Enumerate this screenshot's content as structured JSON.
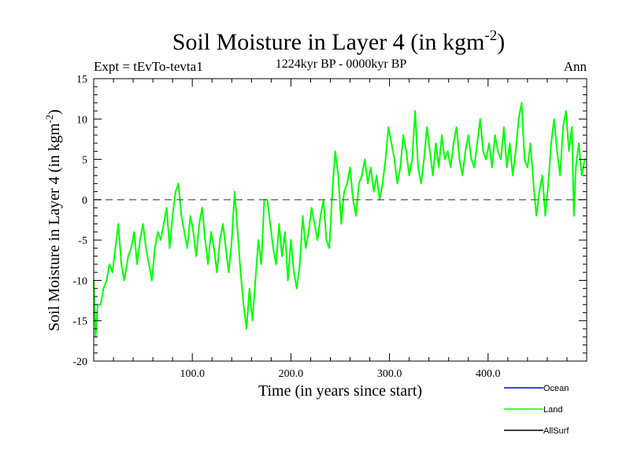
{
  "chart_data": {
    "type": "line",
    "title": "Soil Moisture in Layer 4 (in kgm",
    "title_sup": "-2",
    "title_close": ")",
    "subtitle": "1224kyr BP - 0000kyr BP",
    "expt_label": "Expt = tEvTo-tevta1",
    "season_label": "Ann",
    "xlabel": "Time (in years since start)",
    "ylabel": "Soil Moisture in Layer 4 (in kgm",
    "ylabel_sup": "-2",
    "ylabel_close": ")",
    "xlim": [
      0,
      500
    ],
    "ylim": [
      -20,
      15
    ],
    "xticks": [
      100,
      200,
      300,
      400
    ],
    "xtick_labels": [
      "100.0",
      "200.0",
      "300.0",
      "400.0"
    ],
    "yticks": [
      15,
      10,
      5,
      0,
      -5,
      -10,
      -15,
      -20
    ],
    "ytick_labels": [
      "15",
      "10",
      "5",
      "0",
      "-5",
      "-10",
      "-15",
      "-20"
    ],
    "zero_line": {
      "y": 0,
      "style": "dashed",
      "color": "#555555"
    },
    "series": [
      {
        "name": "Ocean",
        "color": "#0000ff",
        "values": []
      },
      {
        "name": "Land",
        "color": "#00ff00",
        "values": [
          {
            "x": 0,
            "y": -10
          },
          {
            "x": 2,
            "y": -17
          },
          {
            "x": 4,
            "y": -13
          },
          {
            "x": 7,
            "y": -13
          },
          {
            "x": 10,
            "y": -11
          },
          {
            "x": 13,
            "y": -10
          },
          {
            "x": 16,
            "y": -8
          },
          {
            "x": 19,
            "y": -9
          },
          {
            "x": 22,
            "y": -6
          },
          {
            "x": 25,
            "y": -3
          },
          {
            "x": 28,
            "y": -8
          },
          {
            "x": 31,
            "y": -10
          },
          {
            "x": 35,
            "y": -7
          },
          {
            "x": 38,
            "y": -6
          },
          {
            "x": 41,
            "y": -4
          },
          {
            "x": 44,
            "y": -8
          },
          {
            "x": 47,
            "y": -5
          },
          {
            "x": 50,
            "y": -3
          },
          {
            "x": 53,
            "y": -6
          },
          {
            "x": 56,
            "y": -8
          },
          {
            "x": 59,
            "y": -10
          },
          {
            "x": 62,
            "y": -6
          },
          {
            "x": 65,
            "y": -4
          },
          {
            "x": 68,
            "y": -5
          },
          {
            "x": 71,
            "y": -3
          },
          {
            "x": 74,
            "y": -1
          },
          {
            "x": 77,
            "y": -6
          },
          {
            "x": 80,
            "y": -2
          },
          {
            "x": 83,
            "y": 1
          },
          {
            "x": 86,
            "y": 2
          },
          {
            "x": 89,
            "y": -2
          },
          {
            "x": 92,
            "y": -4
          },
          {
            "x": 95,
            "y": -6
          },
          {
            "x": 98,
            "y": -2
          },
          {
            "x": 101,
            "y": -4
          },
          {
            "x": 104,
            "y": -7
          },
          {
            "x": 107,
            "y": -3
          },
          {
            "x": 110,
            "y": -1
          },
          {
            "x": 113,
            "y": -5
          },
          {
            "x": 116,
            "y": -8
          },
          {
            "x": 119,
            "y": -4
          },
          {
            "x": 122,
            "y": -6
          },
          {
            "x": 125,
            "y": -9
          },
          {
            "x": 128,
            "y": -5
          },
          {
            "x": 131,
            "y": -3
          },
          {
            "x": 134,
            "y": -6
          },
          {
            "x": 137,
            "y": -9
          },
          {
            "x": 140,
            "y": -5
          },
          {
            "x": 143,
            "y": 1
          },
          {
            "x": 146,
            "y": -4
          },
          {
            "x": 149,
            "y": -9
          },
          {
            "x": 152,
            "y": -13
          },
          {
            "x": 155,
            "y": -16
          },
          {
            "x": 158,
            "y": -11
          },
          {
            "x": 161,
            "y": -15
          },
          {
            "x": 164,
            "y": -10
          },
          {
            "x": 167,
            "y": -5
          },
          {
            "x": 170,
            "y": -8
          },
          {
            "x": 173,
            "y": 0
          },
          {
            "x": 176,
            "y": 0
          },
          {
            "x": 179,
            "y": -3
          },
          {
            "x": 182,
            "y": -6
          },
          {
            "x": 185,
            "y": -8
          },
          {
            "x": 188,
            "y": -3
          },
          {
            "x": 191,
            "y": -7
          },
          {
            "x": 194,
            "y": -4
          },
          {
            "x": 197,
            "y": -10
          },
          {
            "x": 200,
            "y": -5
          },
          {
            "x": 203,
            "y": -9
          },
          {
            "x": 206,
            "y": -11
          },
          {
            "x": 209,
            "y": -8
          },
          {
            "x": 212,
            "y": -2
          },
          {
            "x": 215,
            "y": -6
          },
          {
            "x": 218,
            "y": -4
          },
          {
            "x": 221,
            "y": -1
          },
          {
            "x": 224,
            "y": -3
          },
          {
            "x": 227,
            "y": -5
          },
          {
            "x": 230,
            "y": -2
          },
          {
            "x": 233,
            "y": 0
          },
          {
            "x": 236,
            "y": -5
          },
          {
            "x": 239,
            "y": -6
          },
          {
            "x": 242,
            "y": 1
          },
          {
            "x": 245,
            "y": 6
          },
          {
            "x": 248,
            "y": 3
          },
          {
            "x": 251,
            "y": -3
          },
          {
            "x": 254,
            "y": 1
          },
          {
            "x": 257,
            "y": 2
          },
          {
            "x": 260,
            "y": 4
          },
          {
            "x": 263,
            "y": 0
          },
          {
            "x": 266,
            "y": -2
          },
          {
            "x": 269,
            "y": 2
          },
          {
            "x": 272,
            "y": 3
          },
          {
            "x": 275,
            "y": 5
          },
          {
            "x": 278,
            "y": 2
          },
          {
            "x": 281,
            "y": 4
          },
          {
            "x": 284,
            "y": 1
          },
          {
            "x": 287,
            "y": 3
          },
          {
            "x": 290,
            "y": 0
          },
          {
            "x": 293,
            "y": 2
          },
          {
            "x": 296,
            "y": 5
          },
          {
            "x": 299,
            "y": 9
          },
          {
            "x": 302,
            "y": 7
          },
          {
            "x": 305,
            "y": 5
          },
          {
            "x": 308,
            "y": 2
          },
          {
            "x": 311,
            "y": 4
          },
          {
            "x": 314,
            "y": 8
          },
          {
            "x": 317,
            "y": 6
          },
          {
            "x": 320,
            "y": 3
          },
          {
            "x": 323,
            "y": 5
          },
          {
            "x": 326,
            "y": 11
          },
          {
            "x": 329,
            "y": 4
          },
          {
            "x": 332,
            "y": 2
          },
          {
            "x": 335,
            "y": 5
          },
          {
            "x": 338,
            "y": 9
          },
          {
            "x": 341,
            "y": 6
          },
          {
            "x": 344,
            "y": 3
          },
          {
            "x": 347,
            "y": 7
          },
          {
            "x": 350,
            "y": 4
          },
          {
            "x": 353,
            "y": 8
          },
          {
            "x": 356,
            "y": 5
          },
          {
            "x": 359,
            "y": 6
          },
          {
            "x": 362,
            "y": 4
          },
          {
            "x": 365,
            "y": 7
          },
          {
            "x": 368,
            "y": 9
          },
          {
            "x": 371,
            "y": 5
          },
          {
            "x": 374,
            "y": 3
          },
          {
            "x": 377,
            "y": 6
          },
          {
            "x": 380,
            "y": 8
          },
          {
            "x": 383,
            "y": 5
          },
          {
            "x": 386,
            "y": 4
          },
          {
            "x": 389,
            "y": 7
          },
          {
            "x": 392,
            "y": 10
          },
          {
            "x": 395,
            "y": 6
          },
          {
            "x": 398,
            "y": 5
          },
          {
            "x": 401,
            "y": 7
          },
          {
            "x": 404,
            "y": 4
          },
          {
            "x": 407,
            "y": 8
          },
          {
            "x": 410,
            "y": 6
          },
          {
            "x": 413,
            "y": 5
          },
          {
            "x": 416,
            "y": 9
          },
          {
            "x": 419,
            "y": 4
          },
          {
            "x": 422,
            "y": 7
          },
          {
            "x": 425,
            "y": 3
          },
          {
            "x": 428,
            "y": 6
          },
          {
            "x": 431,
            "y": 10
          },
          {
            "x": 434,
            "y": 12
          },
          {
            "x": 437,
            "y": 5
          },
          {
            "x": 440,
            "y": 4
          },
          {
            "x": 443,
            "y": 7
          },
          {
            "x": 446,
            "y": 2
          },
          {
            "x": 449,
            "y": -2
          },
          {
            "x": 452,
            "y": 1
          },
          {
            "x": 455,
            "y": 3
          },
          {
            "x": 458,
            "y": -2
          },
          {
            "x": 461,
            "y": 2
          },
          {
            "x": 464,
            "y": 7
          },
          {
            "x": 467,
            "y": 10
          },
          {
            "x": 470,
            "y": 6
          },
          {
            "x": 473,
            "y": 3
          },
          {
            "x": 476,
            "y": 9
          },
          {
            "x": 479,
            "y": 11
          },
          {
            "x": 482,
            "y": 6
          },
          {
            "x": 485,
            "y": 9
          },
          {
            "x": 487,
            "y": -2
          },
          {
            "x": 489,
            "y": 4
          },
          {
            "x": 492,
            "y": 7
          },
          {
            "x": 495,
            "y": 3
          },
          {
            "x": 498,
            "y": 5
          },
          {
            "x": 500,
            "y": 5
          }
        ]
      },
      {
        "name": "AllSurf",
        "color": "#000000",
        "values": []
      }
    ],
    "legend_position": "bottom-right"
  }
}
